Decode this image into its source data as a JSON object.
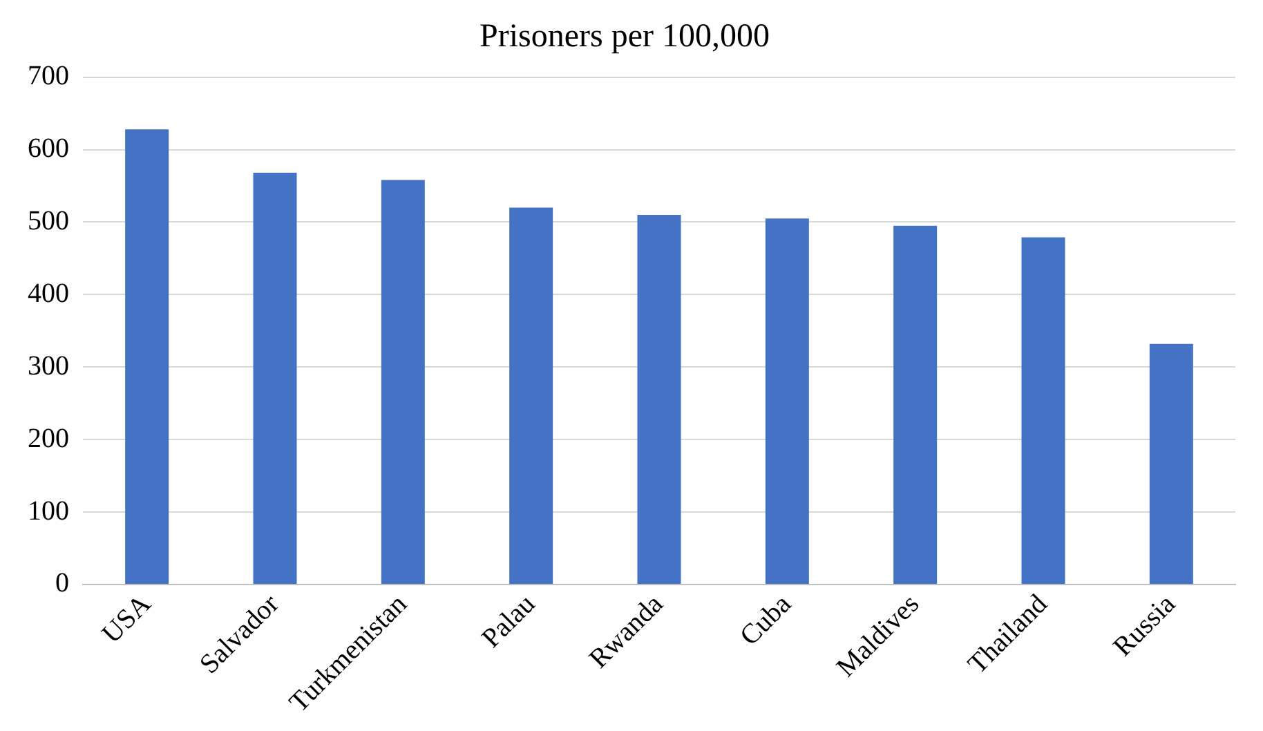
{
  "chart_data": {
    "type": "bar",
    "title": "Prisoners per 100,000",
    "categories": [
      "USA",
      "Salvador",
      "Turkmenistan",
      "Palau",
      "Rwanda",
      "Cuba",
      "Maldives",
      "Thailand",
      "Russia"
    ],
    "values": [
      628,
      568,
      558,
      520,
      510,
      505,
      495,
      479,
      332
    ],
    "color": "#4472c4",
    "ylim": [
      0,
      700
    ],
    "yticks": [
      0,
      100,
      200,
      300,
      400,
      500,
      600,
      700
    ],
    "grid": "y"
  }
}
